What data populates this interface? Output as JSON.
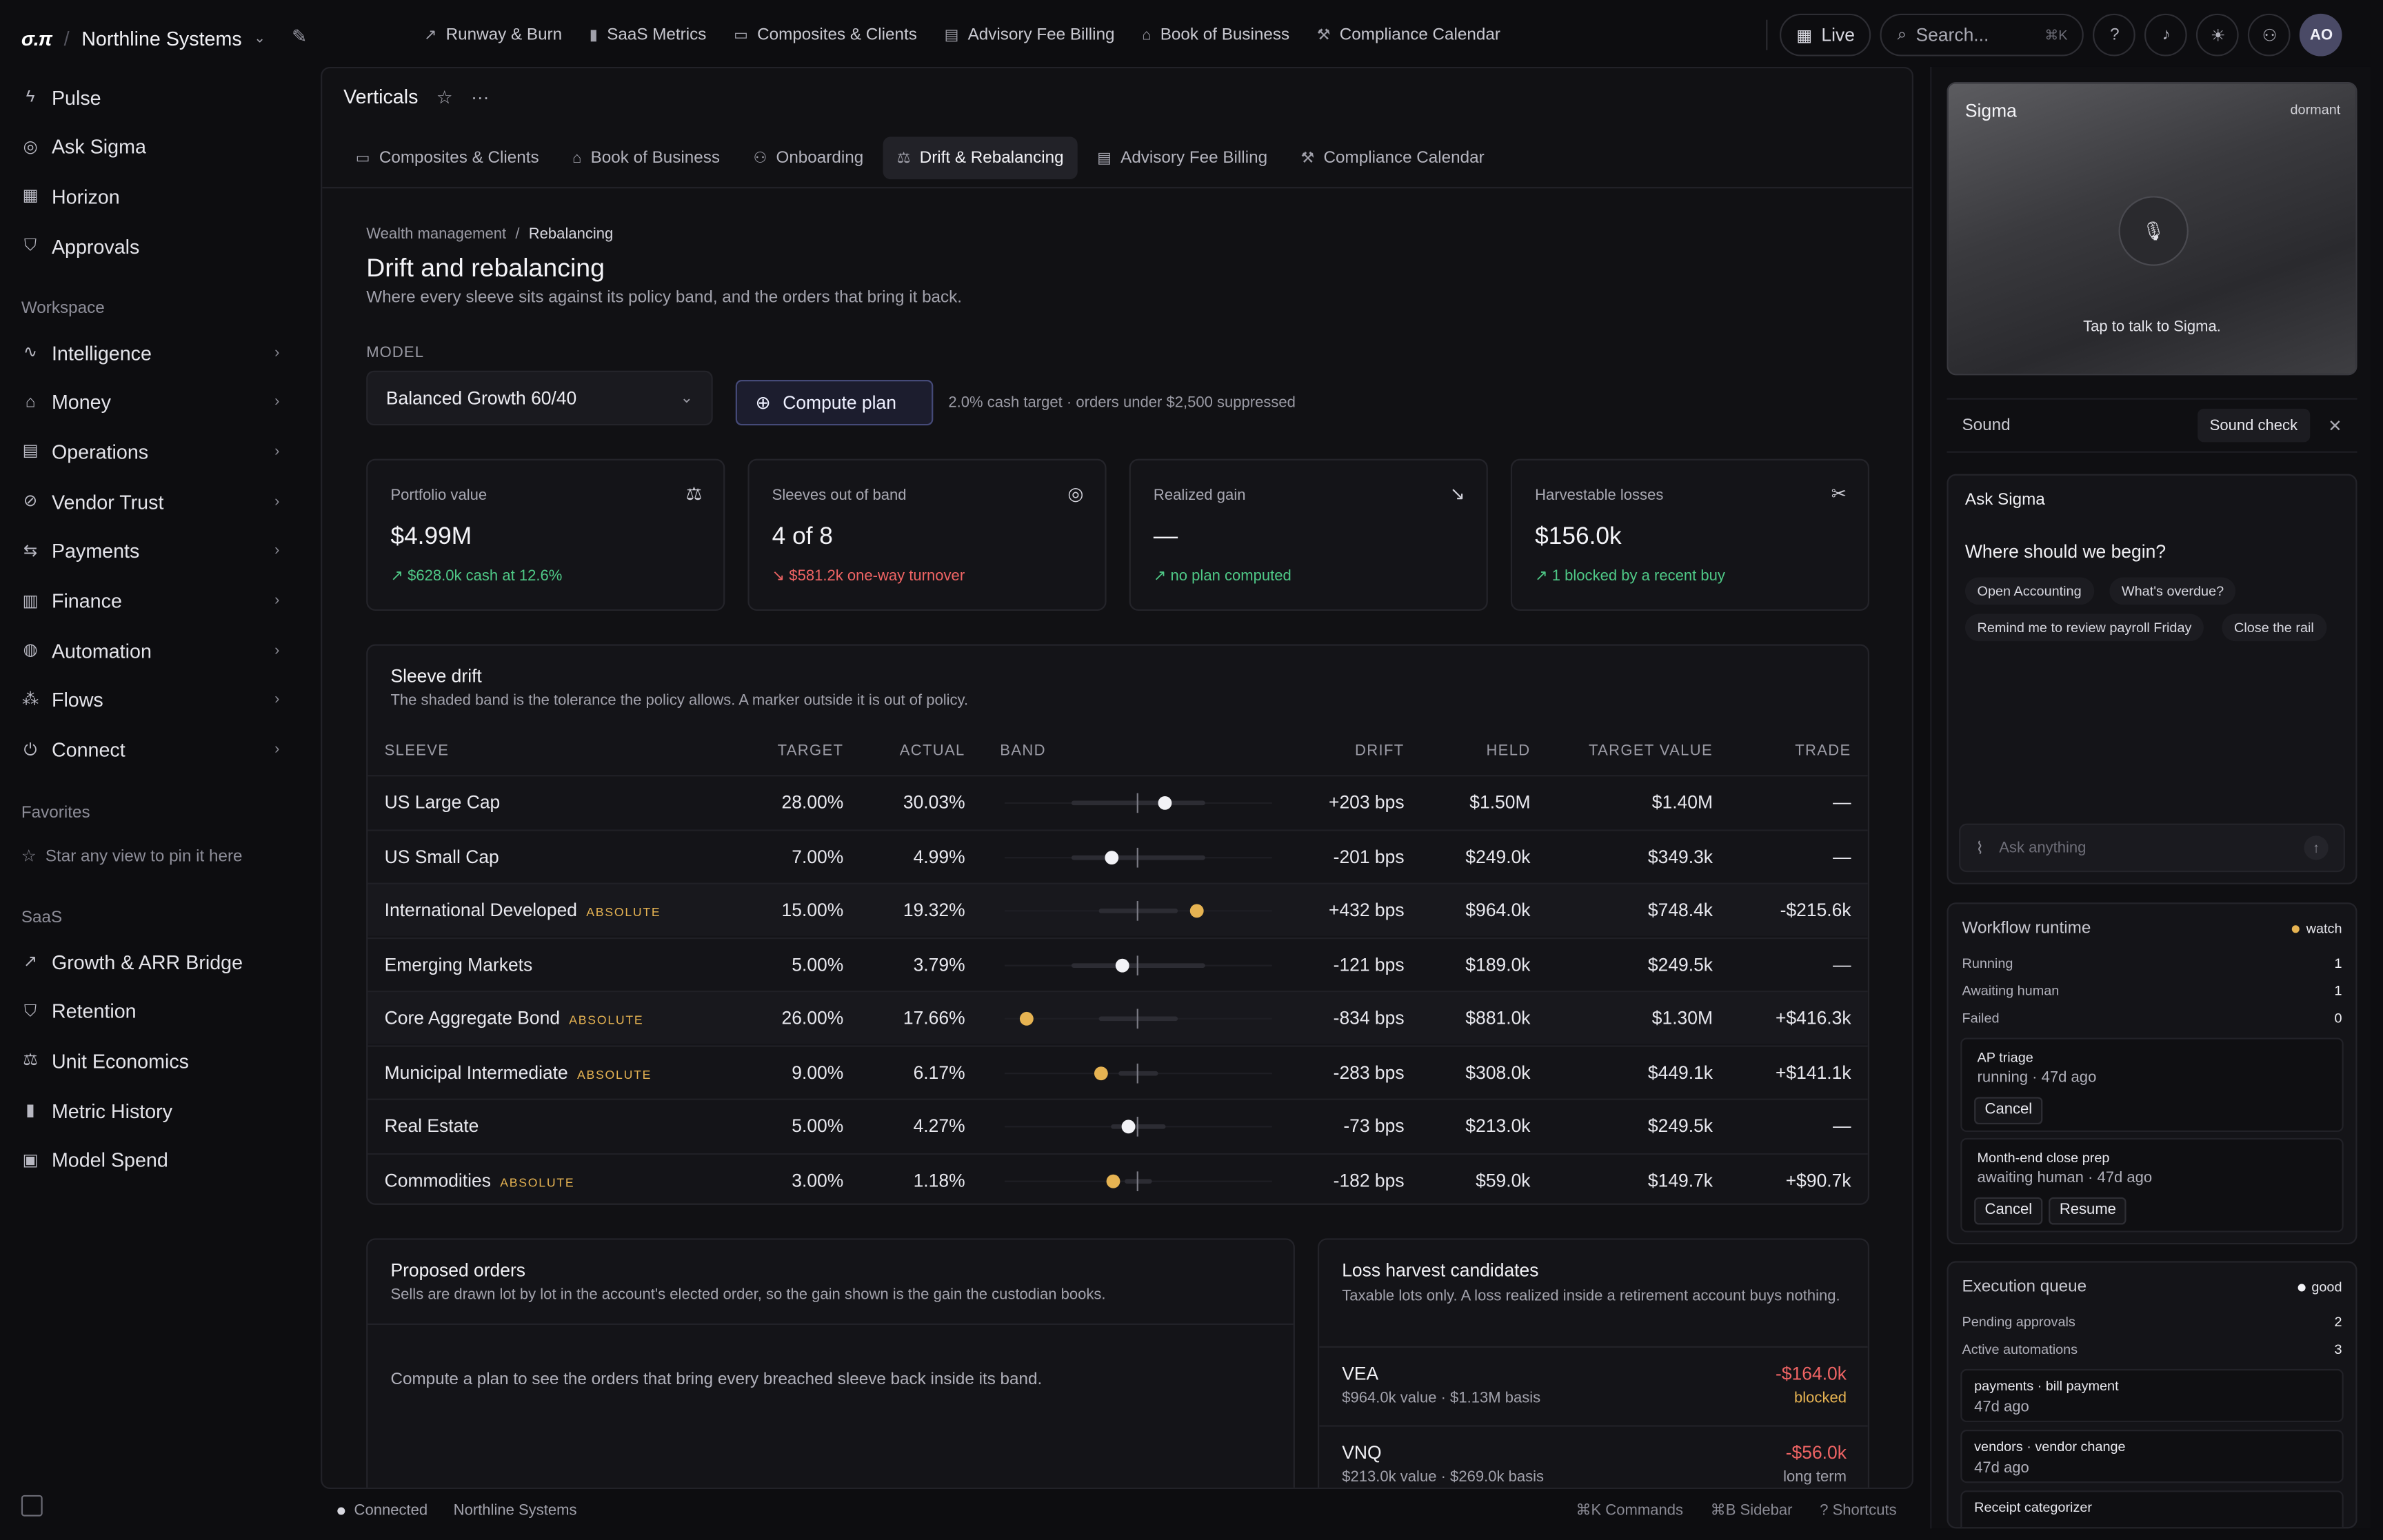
{
  "org": {
    "logo": "σ.π",
    "separator": "/",
    "name": "Northline Systems"
  },
  "sidebar": {
    "primary": [
      {
        "label": "Pulse",
        "icon": "bolt-icon",
        "glyph": "ϟ"
      },
      {
        "label": "Ask Sigma",
        "icon": "sigma-icon",
        "glyph": "◎"
      },
      {
        "label": "Horizon",
        "icon": "calendar-icon",
        "glyph": "▦"
      },
      {
        "label": "Approvals",
        "icon": "shield-icon",
        "glyph": "⛉"
      }
    ],
    "workspace_label": "Workspace",
    "workspace": [
      {
        "label": "Intelligence",
        "icon": "pulse-icon",
        "glyph": "∿"
      },
      {
        "label": "Money",
        "icon": "bank-icon",
        "glyph": "⌂"
      },
      {
        "label": "Operations",
        "icon": "clipboard-icon",
        "glyph": "▤"
      },
      {
        "label": "Vendor Trust",
        "icon": "check-circle-icon",
        "glyph": "⊘"
      },
      {
        "label": "Payments",
        "icon": "transfer-icon",
        "glyph": "⇆"
      },
      {
        "label": "Finance",
        "icon": "receipt-icon",
        "glyph": "▥"
      },
      {
        "label": "Automation",
        "icon": "automation-icon",
        "glyph": "◍"
      },
      {
        "label": "Flows",
        "icon": "flows-icon",
        "glyph": "⁂"
      },
      {
        "label": "Connect",
        "icon": "plug-icon",
        "glyph": "⏻"
      }
    ],
    "favorites_label": "Favorites",
    "favorites_hint": "Star any view to pin it here",
    "saas_label": "SaaS",
    "saas": [
      {
        "label": "Growth & ARR Bridge",
        "icon": "trend-up-icon",
        "glyph": "↗"
      },
      {
        "label": "Retention",
        "icon": "shield-icon",
        "glyph": "⛉"
      },
      {
        "label": "Unit Economics",
        "icon": "scale-icon",
        "glyph": "⚖"
      },
      {
        "label": "Metric History",
        "icon": "bar-chart-icon",
        "glyph": "▮"
      },
      {
        "label": "Model Spend",
        "icon": "cpu-icon",
        "glyph": "▣"
      }
    ]
  },
  "topnav": [
    {
      "label": "Runway & Burn",
      "icon": "trend-icon",
      "glyph": "↗"
    },
    {
      "label": "SaaS Metrics",
      "icon": "bar-chart-icon",
      "glyph": "▮"
    },
    {
      "label": "Composites & Clients",
      "icon": "briefcase-icon",
      "glyph": "▭"
    },
    {
      "label": "Advisory Fee Billing",
      "icon": "receipt-icon",
      "glyph": "▤"
    },
    {
      "label": "Book of Business",
      "icon": "bank-icon",
      "glyph": "⌂"
    },
    {
      "label": "Compliance Calendar",
      "icon": "gavel-icon",
      "glyph": "⚒"
    }
  ],
  "topbar": {
    "live_label": "Live",
    "search_placeholder": "Search...",
    "search_kbd": "⌘K",
    "avatar": "AO"
  },
  "view": {
    "name": "Verticals",
    "tabs": [
      {
        "label": "Composites & Clients",
        "glyph": "▭",
        "active": false
      },
      {
        "label": "Book of Business",
        "glyph": "⌂",
        "active": false
      },
      {
        "label": "Onboarding",
        "glyph": "⚇",
        "active": false
      },
      {
        "label": "Drift & Rebalancing",
        "glyph": "⚖",
        "active": true
      },
      {
        "label": "Advisory Fee Billing",
        "glyph": "▤",
        "active": false
      },
      {
        "label": "Compliance Calendar",
        "glyph": "⚒",
        "active": false
      }
    ]
  },
  "page": {
    "breadcrumb": [
      "Wealth management",
      "Rebalancing"
    ],
    "breadcrumb_sep": "/",
    "title": "Drift and rebalancing",
    "subtitle": "Where every sleeve sits against its policy band, and the orders that bring it back.",
    "model_label": "MODEL",
    "model_value": "Balanced Growth 60/40",
    "compute_label": "Compute plan",
    "compute_note": "2.0% cash target · orders under $2,500 suppressed"
  },
  "stats": [
    {
      "label": "Portfolio value",
      "value": "$4.99M",
      "delta": "$628.0k cash at 12.6%",
      "tone": "green",
      "icon": "scale-icon",
      "glyph": "⚖",
      "arrow": "↗"
    },
    {
      "label": "Sleeves out of band",
      "value": "4 of 8",
      "delta": "$581.2k one-way turnover",
      "tone": "red",
      "icon": "target-icon",
      "glyph": "◎",
      "arrow": "↘"
    },
    {
      "label": "Realized gain",
      "value": "—",
      "delta": "no plan computed",
      "tone": "green",
      "icon": "trend-down-icon",
      "glyph": "↘",
      "arrow": "↗"
    },
    {
      "label": "Harvestable losses",
      "value": "$156.0k",
      "delta": "1 blocked by a recent buy",
      "tone": "green",
      "icon": "scissors-icon",
      "glyph": "✂",
      "arrow": "↗"
    }
  ],
  "drift": {
    "title": "Sleeve drift",
    "subtitle": "The shaded band is the tolerance the policy allows. A marker outside it is out of policy.",
    "columns": [
      "SLEEVE",
      "TARGET",
      "ACTUAL",
      "BAND",
      "DRIFT",
      "HELD",
      "TARGET VALUE",
      "TRADE"
    ],
    "rows": [
      {
        "sleeve": "US Large Cap",
        "badge": "",
        "target": "28.00%",
        "actual": "30.03%",
        "drift": "+203 bps",
        "drift_tone": "normal",
        "held": "$1.50M",
        "target_value": "$1.40M",
        "trade": "—",
        "trade_tone": "red",
        "drift_pct": 2.03,
        "band_pct": 5.0,
        "out": false
      },
      {
        "sleeve": "US Small Cap",
        "badge": "",
        "target": "7.00%",
        "actual": "4.99%",
        "drift": "-201 bps",
        "drift_tone": "red",
        "held": "$249.0k",
        "target_value": "$349.3k",
        "trade": "—",
        "trade_tone": "normal",
        "drift_pct": -2.01,
        "band_pct": 5.0,
        "out": false
      },
      {
        "sleeve": "International Developed",
        "badge": "ABSOLUTE",
        "target": "15.00%",
        "actual": "19.32%",
        "drift": "+432 bps",
        "drift_tone": "normal",
        "held": "$964.0k",
        "target_value": "$748.4k",
        "trade": "-$215.6k",
        "trade_tone": "red",
        "drift_pct": 4.32,
        "band_pct": 3.0,
        "out": true
      },
      {
        "sleeve": "Emerging Markets",
        "badge": "",
        "target": "5.00%",
        "actual": "3.79%",
        "drift": "-121 bps",
        "drift_tone": "red",
        "held": "$189.0k",
        "target_value": "$249.5k",
        "trade": "—",
        "trade_tone": "normal",
        "drift_pct": -1.21,
        "band_pct": 5.0,
        "out": false
      },
      {
        "sleeve": "Core Aggregate Bond",
        "badge": "ABSOLUTE",
        "target": "26.00%",
        "actual": "17.66%",
        "drift": "-834 bps",
        "drift_tone": "red",
        "held": "$881.0k",
        "target_value": "$1.30M",
        "trade": "+$416.3k",
        "trade_tone": "normal",
        "drift_pct": -8.34,
        "band_pct": 3.0,
        "out": true
      },
      {
        "sleeve": "Municipal Intermediate",
        "badge": "ABSOLUTE",
        "target": "9.00%",
        "actual": "6.17%",
        "drift": "-283 bps",
        "drift_tone": "red",
        "held": "$308.0k",
        "target_value": "$449.1k",
        "trade": "+$141.1k",
        "trade_tone": "normal",
        "drift_pct": -2.83,
        "band_pct": 1.5,
        "out": true
      },
      {
        "sleeve": "Real Estate",
        "badge": "",
        "target": "5.00%",
        "actual": "4.27%",
        "drift": "-73 bps",
        "drift_tone": "red",
        "held": "$213.0k",
        "target_value": "$249.5k",
        "trade": "—",
        "trade_tone": "normal",
        "drift_pct": -0.73,
        "band_pct": 2.0,
        "out": false
      },
      {
        "sleeve": "Commodities",
        "badge": "ABSOLUTE",
        "target": "3.00%",
        "actual": "1.18%",
        "drift": "-182 bps",
        "drift_tone": "red",
        "held": "$59.0k",
        "target_value": "$149.7k",
        "trade": "+$90.7k",
        "trade_tone": "normal",
        "drift_pct": -1.82,
        "band_pct": 1.0,
        "out": true
      }
    ],
    "in_band_color": "#f2f2f6",
    "out_band_color": "#e6b352"
  },
  "orders": {
    "title": "Proposed orders",
    "subtitle": "Sells are drawn lot by lot in the account's elected order, so the gain shown is the gain the custodian books.",
    "empty": "Compute a plan to see the orders that bring every breached sleeve back inside its band."
  },
  "harvest": {
    "title": "Loss harvest candidates",
    "subtitle": "Taxable lots only. A loss realized inside a retirement account buys nothing.",
    "items": [
      {
        "ticker": "VEA",
        "meta": "$964.0k value · $1.13M basis",
        "amount": "-$164.0k",
        "status": "blocked",
        "tone": "amber"
      },
      {
        "ticker": "VNQ",
        "meta": "$213.0k value · $269.0k basis",
        "amount": "-$56.0k",
        "status": "long term",
        "tone": "muted"
      }
    ]
  },
  "statusbar": {
    "connected": "Connected",
    "org": "Northline Systems",
    "shortcuts": [
      "⌘K Commands",
      "⌘B Sidebar",
      "? Shortcuts"
    ]
  },
  "rail": {
    "sigma": {
      "name": "Sigma",
      "state": "dormant",
      "tap": "Tap to talk to Sigma."
    },
    "sound": {
      "label": "Sound",
      "check": "Sound check"
    },
    "ask": {
      "title": "Ask Sigma",
      "question": "Where should we begin?",
      "chips": [
        "Open Accounting",
        "What's overdue?",
        "Remind me to review payroll Friday",
        "Close the rail"
      ],
      "placeholder": "Ask anything"
    },
    "workflow": {
      "title": "Workflow runtime",
      "status": "watch",
      "status_color": "#e6b352",
      "kv": [
        {
          "k": "Running",
          "v": "1"
        },
        {
          "k": "Awaiting human",
          "v": "1"
        },
        {
          "k": "Failed",
          "v": "0"
        }
      ],
      "jobs": [
        {
          "name": "AP triage",
          "state": "running · 47d ago",
          "buttons": [
            "Cancel"
          ]
        },
        {
          "name": "Month-end close prep",
          "state": "awaiting human · 47d ago",
          "buttons": [
            "Cancel",
            "Resume"
          ]
        }
      ]
    },
    "queue": {
      "title": "Execution queue",
      "status": "good",
      "status_color": "#f2f2f6",
      "kv": [
        {
          "k": "Pending approvals",
          "v": "2"
        },
        {
          "k": "Active automations",
          "v": "3"
        }
      ],
      "items": [
        {
          "name": "payments · bill payment",
          "time": "47d ago"
        },
        {
          "name": "vendors · vendor change",
          "time": "47d ago"
        },
        {
          "name": "Receipt categorizer",
          "time": ""
        }
      ]
    }
  }
}
